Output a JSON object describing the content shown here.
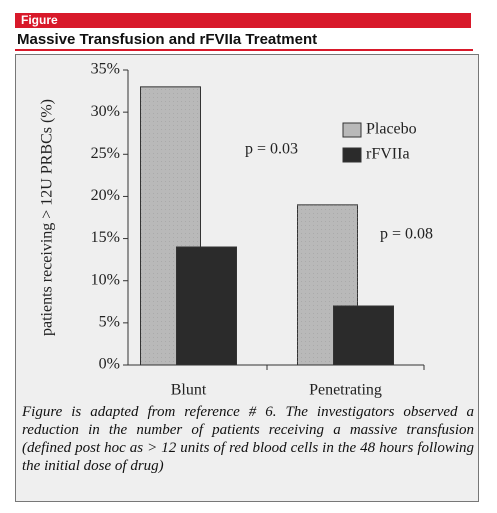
{
  "header": "Figure",
  "title": "Massive Transfusion and rFVIIa Treatment",
  "chart_data": {
    "type": "bar",
    "ylabel": "patients receiving > 12U PRBCs (%)",
    "categories": [
      "Blunt",
      "Penetrating"
    ],
    "series": [
      {
        "name": "Placebo",
        "color": "#b9b9b9",
        "values": [
          33,
          19
        ]
      },
      {
        "name": "rFVIIa",
        "color": "#2b2b2b",
        "values": [
          14,
          7
        ]
      }
    ],
    "ylim": [
      0,
      35
    ],
    "yticks": [
      {
        "value": 0,
        "label": "0%"
      },
      {
        "value": 5,
        "label": "5%"
      },
      {
        "value": 10,
        "label": "10%"
      },
      {
        "value": 15,
        "label": "15%"
      },
      {
        "value": 20,
        "label": "20%"
      },
      {
        "value": 25,
        "label": "25%"
      },
      {
        "value": 30,
        "label": "30%"
      },
      {
        "value": 35,
        "label": "35%"
      }
    ],
    "annotations": [
      "p = 0.03",
      "p = 0.08"
    ],
    "legend": "upper right"
  },
  "caption": "Figure is adapted from reference # 6. The investigators observed a reduction in the number of patients receiving a massive transfusion (defined post hoc as > 12 units of red blood cells in the 48 hours following the initial dose of drug)"
}
